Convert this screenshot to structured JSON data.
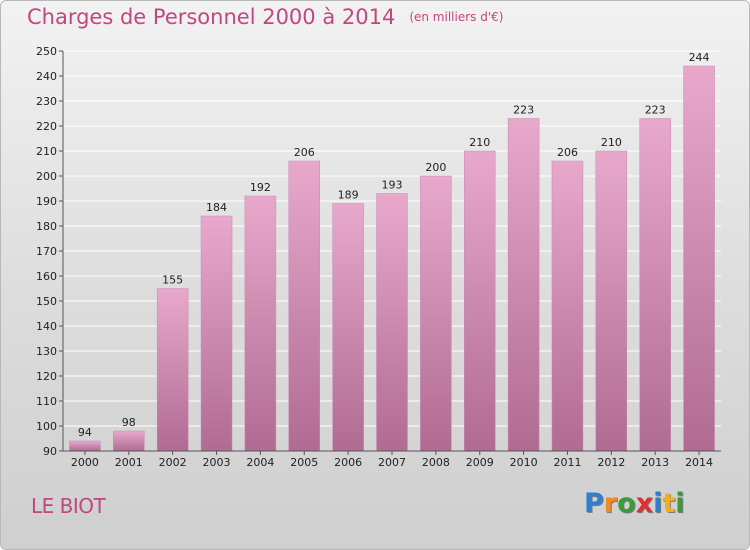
{
  "header": {
    "title": "Charges de Personnel 2000 à 2014",
    "subtitle": "(en milliers d'€)"
  },
  "footer": {
    "commune": "LE BIOT",
    "brand_letters": [
      {
        "ch": "P",
        "color": "#2f7fd0"
      },
      {
        "ch": "r",
        "color": "#f08a24"
      },
      {
        "ch": "o",
        "color": "#3a9b3a"
      },
      {
        "ch": "x",
        "color": "#e03030"
      },
      {
        "ch": "i",
        "color": "#2f7fd0"
      },
      {
        "ch": "t",
        "color": "#f0b020"
      },
      {
        "ch": "i",
        "color": "#3a9b3a"
      }
    ]
  },
  "colors": {
    "accent": "#c0477f",
    "bar_light": "#e8a8cc",
    "bar_dark": "#b06b92",
    "grid": "#ffffff"
  },
  "chart_data": {
    "type": "bar",
    "title": "Charges de Personnel 2000 à 2014",
    "subtitle": "(en milliers d'€)",
    "categories": [
      "2000",
      "2001",
      "2002",
      "2003",
      "2004",
      "2005",
      "2006",
      "2007",
      "2008",
      "2009",
      "2010",
      "2011",
      "2012",
      "2013",
      "2014"
    ],
    "values": [
      94,
      98,
      155,
      184,
      192,
      206,
      189,
      193,
      200,
      210,
      223,
      206,
      210,
      223,
      244
    ],
    "ylim": [
      90,
      250
    ],
    "yticks": [
      90,
      100,
      110,
      120,
      130,
      140,
      150,
      160,
      170,
      180,
      190,
      200,
      210,
      220,
      230,
      240,
      250
    ],
    "grid": true,
    "xlabel": "",
    "ylabel": ""
  }
}
